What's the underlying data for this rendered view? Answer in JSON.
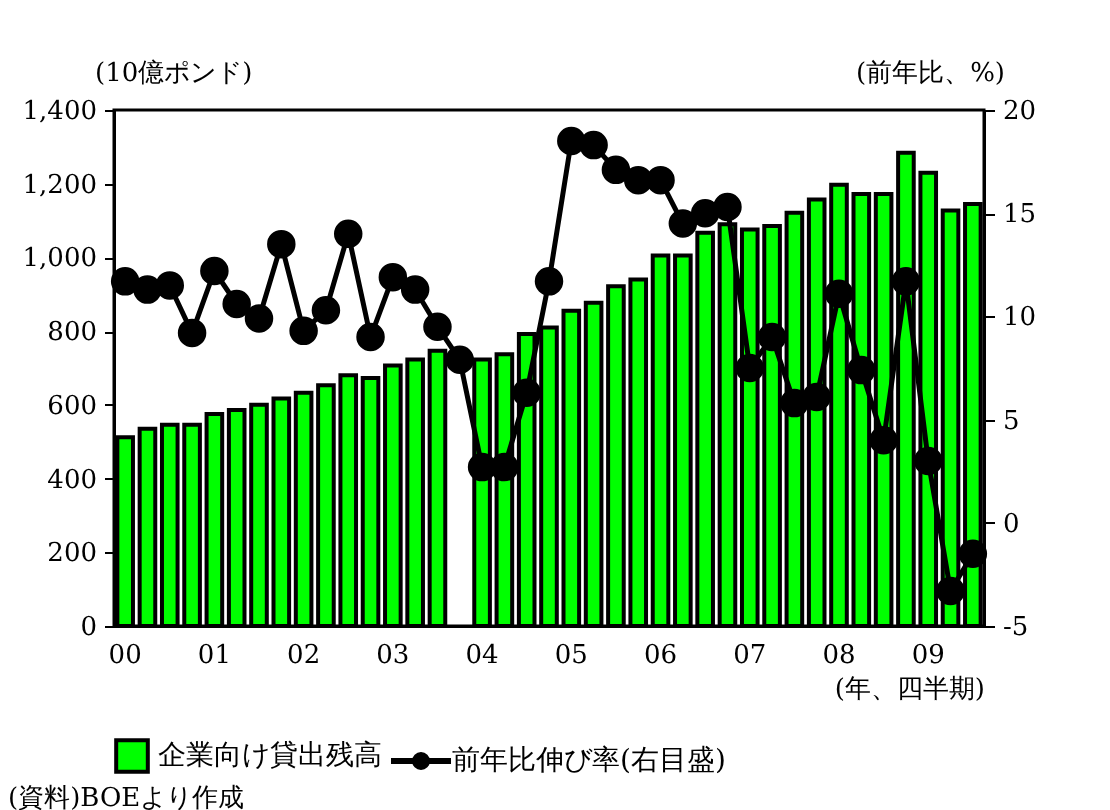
{
  "chart_data": {
    "type": "bar",
    "ylabel": "(10億ポンド)",
    "y2label": "(前年比、%)",
    "xlabel": "(年、四半期)",
    "categories": [
      "00",
      null,
      null,
      null,
      "01",
      null,
      null,
      null,
      "02",
      null,
      null,
      null,
      "03",
      null,
      null,
      null,
      "04",
      null,
      null,
      null,
      "05",
      null,
      null,
      null,
      "06",
      null,
      null,
      null,
      "07",
      null,
      null,
      null,
      "08",
      null,
      null,
      null,
      "09",
      null,
      null
    ],
    "series": [
      {
        "name": "企業向け貸出残高",
        "color": "#00ff00",
        "values": [
          512,
          535,
          546,
          546,
          575,
          586,
          600,
          617,
          633,
          653,
          680,
          673,
          707,
          723,
          747,
          null,
          723,
          737,
          792,
          810,
          855,
          877,
          922,
          940,
          1005,
          1005,
          1067,
          1090,
          1076,
          1085,
          1121,
          1157,
          1197,
          1172,
          1172,
          1284,
          1230,
          1127,
          1145
        ]
      },
      {
        "name": "前年比伸び率(右目盛)",
        "type": "line",
        "axis": "y2",
        "color": "#000000",
        "marker": "circle",
        "values": [
          11.7,
          11.3,
          11.5,
          9.2,
          12.2,
          10.6,
          9.9,
          13.5,
          9.3,
          10.3,
          14.0,
          9.0,
          11.9,
          11.3,
          9.5,
          7.9,
          2.7,
          2.7,
          6.3,
          11.7,
          18.5,
          18.3,
          17.1,
          16.6,
          16.6,
          14.5,
          15.0,
          15.3,
          7.5,
          9.0,
          5.8,
          6.1,
          11.1,
          7.4,
          4.0,
          11.7,
          3.0,
          -3.3,
          -1.5
        ]
      }
    ],
    "ylim": [
      0,
      1400
    ],
    "yticks": [
      0,
      200,
      400,
      600,
      800,
      {
        "value": 1000,
        "label": "1,000"
      },
      {
        "value": 1200,
        "label": "1,200"
      },
      {
        "value": 1400,
        "label": "1,400"
      }
    ],
    "y2lim": [
      -5,
      20
    ],
    "y2ticks": [
      -5,
      0,
      5,
      10,
      15,
      20
    ],
    "legend": "bottom",
    "annotations": [
      "(資料)BOEより作成"
    ]
  }
}
